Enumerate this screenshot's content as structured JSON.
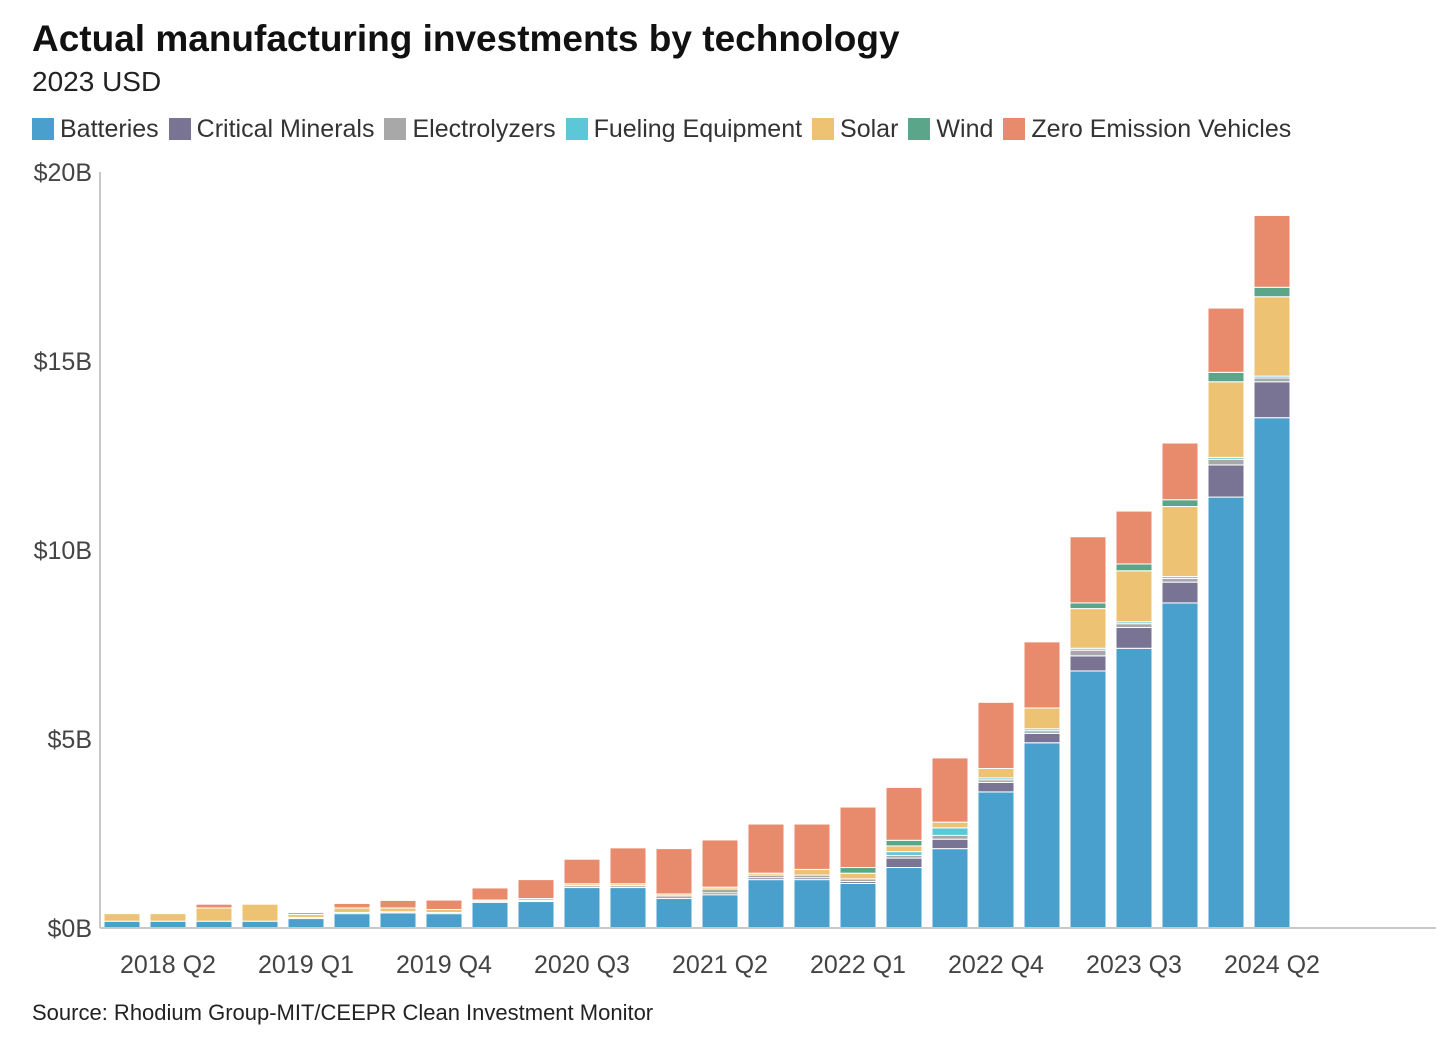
{
  "chart_data": {
    "type": "bar",
    "stacked": true,
    "title": "Actual manufacturing investments by technology",
    "subtitle": "2023 USD",
    "source": "Source: Rhodium Group-MIT/CEEPR Clean Investment Monitor",
    "ylim": [
      0,
      20
    ],
    "yticks": [
      0,
      5,
      10,
      15,
      20
    ],
    "ytick_labels": [
      "$0B",
      "$5B",
      "$10B",
      "$15B",
      "$20B"
    ],
    "xtick_labels": [
      "2018 Q2",
      "2019 Q1",
      "2019 Q4",
      "2020 Q3",
      "2021 Q2",
      "2022 Q1",
      "2022 Q4",
      "2023 Q3",
      "2024 Q2"
    ],
    "categories": [
      "2018 Q1",
      "2018 Q2",
      "2018 Q3",
      "2018 Q4",
      "2019 Q1",
      "2019 Q2",
      "2019 Q3",
      "2019 Q4",
      "2020 Q1",
      "2020 Q2",
      "2020 Q3",
      "2020 Q4",
      "2021 Q1",
      "2021 Q2",
      "2021 Q3",
      "2021 Q4",
      "2022 Q1",
      "2022 Q2",
      "2022 Q3",
      "2022 Q4",
      "2023 Q1",
      "2023 Q2",
      "2023 Q3",
      "2023 Q4",
      "2024 Q1",
      "2024 Q2"
    ],
    "legend_position": "top",
    "grid": false,
    "series": [
      {
        "name": "Batteries",
        "color": "#4aa0cd",
        "values": [
          0.18,
          0.18,
          0.18,
          0.18,
          0.25,
          0.38,
          0.4,
          0.38,
          0.68,
          0.7,
          1.07,
          1.07,
          0.78,
          0.88,
          1.28,
          1.28,
          1.18,
          1.6,
          2.1,
          3.6,
          4.9,
          6.8,
          7.4,
          8.6,
          11.4,
          13.5
        ]
      },
      {
        "name": "Critical Minerals",
        "color": "#7a7494",
        "values": [
          0,
          0,
          0,
          0,
          0,
          0,
          0,
          0,
          0,
          0,
          0,
          0,
          0,
          0.05,
          0.05,
          0.05,
          0.05,
          0.25,
          0.25,
          0.25,
          0.25,
          0.4,
          0.55,
          0.55,
          0.85,
          0.95
        ]
      },
      {
        "name": "Electrolyzers",
        "color": "#a8a8a8",
        "values": [
          0,
          0,
          0,
          0,
          0.03,
          0.03,
          0.03,
          0.03,
          0.03,
          0.03,
          0.05,
          0.05,
          0.07,
          0.1,
          0.07,
          0.07,
          0.07,
          0.07,
          0.1,
          0.07,
          0.07,
          0.15,
          0.1,
          0.1,
          0.15,
          0.1
        ]
      },
      {
        "name": "Fueling Equipment",
        "color": "#5cc7d6",
        "values": [
          0,
          0,
          0,
          0,
          0,
          0,
          0,
          0,
          0,
          0,
          0,
          0,
          0,
          0,
          0,
          0,
          0,
          0.1,
          0.2,
          0.05,
          0.05,
          0.05,
          0.05,
          0.05,
          0.05,
          0.05
        ]
      },
      {
        "name": "Solar",
        "color": "#edc373",
        "values": [
          0.2,
          0.2,
          0.35,
          0.45,
          0.08,
          0.12,
          0.1,
          0.08,
          0.03,
          0.05,
          0.05,
          0.05,
          0.05,
          0.05,
          0.05,
          0.15,
          0.15,
          0.15,
          0.15,
          0.25,
          0.55,
          1.05,
          1.35,
          1.85,
          2.0,
          2.1
        ]
      },
      {
        "name": "Wind",
        "color": "#5ba58a",
        "values": [
          0,
          0,
          0,
          0,
          0,
          0,
          0,
          0,
          0,
          0,
          0,
          0,
          0,
          0,
          0,
          0,
          0.15,
          0.15,
          0,
          0,
          0,
          0.15,
          0.18,
          0.18,
          0.25,
          0.25
        ]
      },
      {
        "name": "Zero Emission Vehicles",
        "color": "#e88b6c",
        "values": [
          0,
          0,
          0.1,
          0,
          0.05,
          0.12,
          0.2,
          0.25,
          0.32,
          0.5,
          0.65,
          0.95,
          1.2,
          1.25,
          1.3,
          1.2,
          1.6,
          1.4,
          1.7,
          1.75,
          1.75,
          1.75,
          1.4,
          1.5,
          1.7,
          1.9
        ]
      }
    ]
  }
}
